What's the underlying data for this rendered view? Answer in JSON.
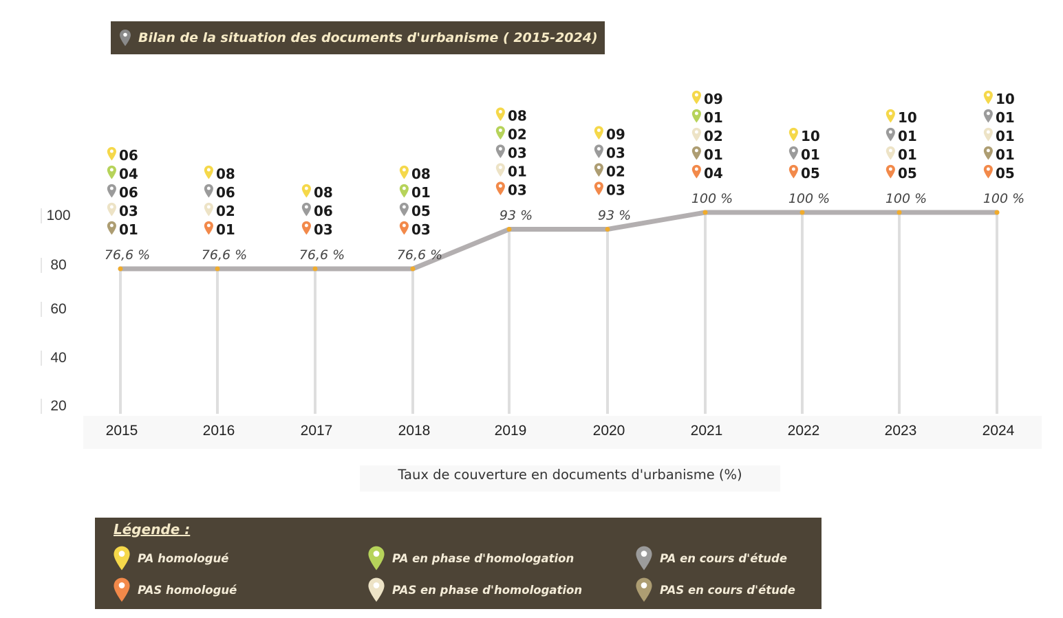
{
  "title": "Bilan de la situation des documents d'urbanisme ( 2015-2024)",
  "colors": {
    "pa_homologue": "#f5d84a",
    "pa_phase": "#b6d35a",
    "pa_etude": "#9b9b9b",
    "pas_homologue": "#f2894a",
    "pas_phase": "#ede3c6",
    "pas_etude": "#ad9d72",
    "line": "#b3afb0",
    "marker": "#f0ab2c",
    "drop_line": "#dedede",
    "panel": "#4d4436"
  },
  "legend": {
    "title": "Légende :",
    "items": [
      {
        "key": "pa_homologue",
        "label": "PA homologué"
      },
      {
        "key": "pa_phase",
        "label": "PA en phase d'homologation"
      },
      {
        "key": "pa_etude",
        "label": "PA en cours d'étude"
      },
      {
        "key": "pas_homologue",
        "label": "PAS homologué"
      },
      {
        "key": "pas_phase",
        "label": "PAS en phase d'homologation"
      },
      {
        "key": "pas_etude",
        "label": "PAS en cours d'étude"
      }
    ]
  },
  "chart_data": {
    "type": "line",
    "title": "Bilan de la situation des documents d'urbanisme ( 2015-2024)",
    "xlabel": "Taux de couverture en documents d'urbanisme (%)",
    "ylabel": "",
    "x": [
      "2015",
      "2016",
      "2017",
      "2018",
      "2019",
      "2020",
      "2021",
      "2022",
      "2023",
      "2024"
    ],
    "values": [
      76.6,
      76.6,
      76.6,
      76.6,
      93,
      93,
      100,
      100,
      100,
      100
    ],
    "value_labels": [
      "76,6 %",
      "76,6 %",
      "76,6 %",
      "76,6 %",
      "93 %",
      "93 %",
      "100 %",
      "100 %",
      "100 %",
      "100 %"
    ],
    "yticks": [
      "100",
      "80",
      "60",
      "40",
      "20"
    ],
    "ylim": [
      20,
      100
    ],
    "counts": [
      [
        {
          "key": "pa_homologue",
          "value": "06"
        },
        {
          "key": "pa_phase",
          "value": "04"
        },
        {
          "key": "pa_etude",
          "value": "06"
        },
        {
          "key": "pas_phase",
          "value": "03"
        },
        {
          "key": "pas_etude",
          "value": "01"
        }
      ],
      [
        {
          "key": "pa_homologue",
          "value": "08"
        },
        {
          "key": "pa_etude",
          "value": "06"
        },
        {
          "key": "pas_phase",
          "value": "02"
        },
        {
          "key": "pas_homologue",
          "value": "01"
        }
      ],
      [
        {
          "key": "pa_homologue",
          "value": "08"
        },
        {
          "key": "pa_etude",
          "value": "06"
        },
        {
          "key": "pas_homologue",
          "value": "03"
        }
      ],
      [
        {
          "key": "pa_homologue",
          "value": "08"
        },
        {
          "key": "pa_phase",
          "value": "01"
        },
        {
          "key": "pa_etude",
          "value": "05"
        },
        {
          "key": "pas_homologue",
          "value": "03"
        }
      ],
      [
        {
          "key": "pa_homologue",
          "value": "08"
        },
        {
          "key": "pa_phase",
          "value": "02"
        },
        {
          "key": "pa_etude",
          "value": "03"
        },
        {
          "key": "pas_phase",
          "value": "01"
        },
        {
          "key": "pas_homologue",
          "value": "03"
        }
      ],
      [
        {
          "key": "pa_homologue",
          "value": "09"
        },
        {
          "key": "pa_etude",
          "value": "03"
        },
        {
          "key": "pas_etude",
          "value": "02"
        },
        {
          "key": "pas_homologue",
          "value": "03"
        }
      ],
      [
        {
          "key": "pa_homologue",
          "value": "09"
        },
        {
          "key": "pa_phase",
          "value": "01"
        },
        {
          "key": "pas_phase",
          "value": "02"
        },
        {
          "key": "pas_etude",
          "value": "01"
        },
        {
          "key": "pas_homologue",
          "value": "04"
        }
      ],
      [
        {
          "key": "pa_homologue",
          "value": "10"
        },
        {
          "key": "pa_etude",
          "value": "01"
        },
        {
          "key": "pas_homologue",
          "value": "05"
        }
      ],
      [
        {
          "key": "pa_homologue",
          "value": "10"
        },
        {
          "key": "pa_etude",
          "value": "01"
        },
        {
          "key": "pas_phase",
          "value": "01"
        },
        {
          "key": "pas_homologue",
          "value": "05"
        }
      ],
      [
        {
          "key": "pa_homologue",
          "value": "10"
        },
        {
          "key": "pa_etude",
          "value": "01"
        },
        {
          "key": "pas_phase",
          "value": "01"
        },
        {
          "key": "pas_etude",
          "value": "01"
        },
        {
          "key": "pas_homologue",
          "value": "05"
        }
      ]
    ]
  }
}
